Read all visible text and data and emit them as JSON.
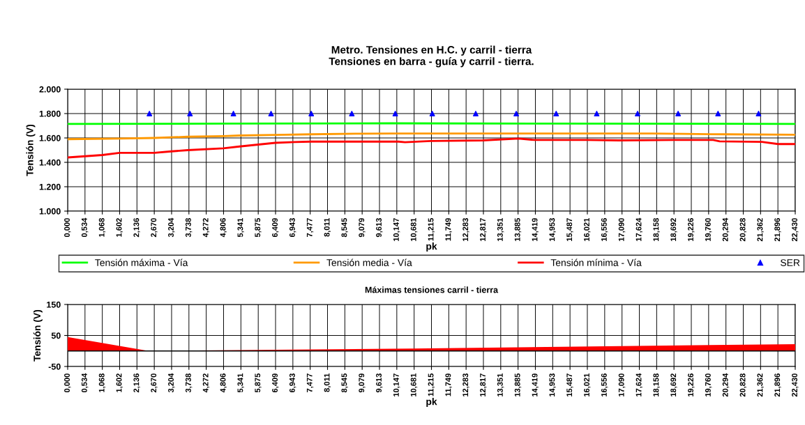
{
  "chart_data": [
    {
      "type": "line",
      "title": "Metro. Tensiones en H.C. y carril - tierra",
      "subtitle": "Tensiones en barra - guía y carril - tierra.",
      "xlabel": "pk",
      "ylabel": "Tensión (V)",
      "xlim": [
        0,
        22.43
      ],
      "ylim": [
        1000,
        2000
      ],
      "xticks": [
        {
          "value": 0,
          "label": "0,000"
        },
        {
          "value": 0.534,
          "label": "0,534"
        },
        {
          "value": 1.068,
          "label": "1,068"
        },
        {
          "value": 1.602,
          "label": "1,602"
        },
        {
          "value": 2.136,
          "label": "2,136"
        },
        {
          "value": 2.67,
          "label": "2,670"
        },
        {
          "value": 3.204,
          "label": "3,204"
        },
        {
          "value": 3.738,
          "label": "3,738"
        },
        {
          "value": 4.272,
          "label": "4,272"
        },
        {
          "value": 4.806,
          "label": "4,806"
        },
        {
          "value": 5.341,
          "label": "5,341"
        },
        {
          "value": 5.875,
          "label": "5,875"
        },
        {
          "value": 6.409,
          "label": "6,409"
        },
        {
          "value": 6.943,
          "label": "6,943"
        },
        {
          "value": 7.477,
          "label": "7,477"
        },
        {
          "value": 8.011,
          "label": "8,011"
        },
        {
          "value": 8.545,
          "label": "8,545"
        },
        {
          "value": 9.079,
          "label": "9,079"
        },
        {
          "value": 9.613,
          "label": "9,613"
        },
        {
          "value": 10.147,
          "label": "10,147"
        },
        {
          "value": 10.681,
          "label": "10,681"
        },
        {
          "value": 11.215,
          "label": "11,215"
        },
        {
          "value": 11.749,
          "label": "11,749"
        },
        {
          "value": 12.283,
          "label": "12,283"
        },
        {
          "value": 12.817,
          "label": "12,817"
        },
        {
          "value": 13.351,
          "label": "13,351"
        },
        {
          "value": 13.885,
          "label": "13,885"
        },
        {
          "value": 14.419,
          "label": "14,419"
        },
        {
          "value": 14.953,
          "label": "14,953"
        },
        {
          "value": 15.487,
          "label": "15,487"
        },
        {
          "value": 16.021,
          "label": "16,021"
        },
        {
          "value": 16.556,
          "label": "16,556"
        },
        {
          "value": 17.09,
          "label": "17,090"
        },
        {
          "value": 17.624,
          "label": "17,624"
        },
        {
          "value": 18.158,
          "label": "18,158"
        },
        {
          "value": 18.692,
          "label": "18,692"
        },
        {
          "value": 19.226,
          "label": "19,226"
        },
        {
          "value": 19.76,
          "label": "19,760"
        },
        {
          "value": 20.294,
          "label": "20,294"
        },
        {
          "value": 20.828,
          "label": "20,828"
        },
        {
          "value": 21.362,
          "label": "21,362"
        },
        {
          "value": 21.896,
          "label": "21,896"
        },
        {
          "value": 22.43,
          "label": "22,430"
        }
      ],
      "yticks": [
        {
          "value": 1000,
          "label": "1.000"
        },
        {
          "value": 1200,
          "label": "1.200"
        },
        {
          "value": 1400,
          "label": "1.400"
        },
        {
          "value": 1600,
          "label": "1.600"
        },
        {
          "value": 1800,
          "label": "1.800"
        },
        {
          "value": 2000,
          "label": "2.000"
        }
      ],
      "grid": true,
      "legend": "bottom",
      "series": [
        {
          "name": "Tensión máxima - Vía",
          "color": "#00ff00",
          "x": [
            0,
            5,
            10,
            15,
            20,
            22.43
          ],
          "values": [
            1715,
            1718,
            1720,
            1718,
            1717,
            1715
          ]
        },
        {
          "name": "Tensión media - Vía",
          "color": "#ff9900",
          "x": [
            0,
            1.6,
            2.67,
            3.7,
            4.8,
            5.3,
            6.4,
            7.5,
            9,
            10,
            14,
            18,
            19,
            20.3,
            22.43
          ],
          "values": [
            1590,
            1595,
            1600,
            1610,
            1615,
            1620,
            1625,
            1630,
            1635,
            1637,
            1637,
            1637,
            1633,
            1630,
            1627
          ]
        },
        {
          "name": "Tensión mínima - Vía",
          "color": "#ff0000",
          "x": [
            0,
            1.07,
            1.6,
            2.67,
            3.2,
            3.7,
            4.8,
            5.3,
            6.4,
            7,
            7.5,
            10.2,
            10.4,
            11.2,
            12.8,
            13.9,
            14.4,
            16,
            17,
            18.7,
            19.9,
            20.1,
            21.4,
            21.9,
            22.43
          ],
          "values": [
            1440,
            1460,
            1478,
            1478,
            1490,
            1500,
            1515,
            1530,
            1560,
            1567,
            1570,
            1570,
            1565,
            1575,
            1580,
            1595,
            1583,
            1583,
            1580,
            1583,
            1583,
            1572,
            1568,
            1550,
            1550
          ]
        },
        {
          "name": "SER",
          "type": "scatter",
          "marker": "triangle",
          "color": "#0000ff",
          "x": [
            2.52,
            3.77,
            5.11,
            6.27,
            7.51,
            8.76,
            10.1,
            11.24,
            12.58,
            13.83,
            15.06,
            16.31,
            17.57,
            18.82,
            20.05,
            21.3
          ],
          "values": [
            1800,
            1800,
            1800,
            1800,
            1800,
            1800,
            1800,
            1800,
            1800,
            1800,
            1800,
            1800,
            1800,
            1800,
            1800,
            1800
          ]
        }
      ]
    },
    {
      "type": "area",
      "title": "Máximas tensiones carril - tierra",
      "xlabel": "pk",
      "ylabel": "Tensión (V)",
      "xlim": [
        0,
        22.43
      ],
      "ylim": [
        -50,
        150
      ],
      "yticks": [
        -50,
        50,
        150
      ],
      "grid": true,
      "xticks": [
        {
          "value": 0,
          "label": "0,000"
        },
        {
          "value": 0.534,
          "label": "0,534"
        },
        {
          "value": 1.068,
          "label": "1,068"
        },
        {
          "value": 1.602,
          "label": "1,602"
        },
        {
          "value": 2.136,
          "label": "2,136"
        },
        {
          "value": 2.67,
          "label": "2,670"
        },
        {
          "value": 3.204,
          "label": "3,204"
        },
        {
          "value": 3.738,
          "label": "3,738"
        },
        {
          "value": 4.272,
          "label": "4,272"
        },
        {
          "value": 4.806,
          "label": "4,806"
        },
        {
          "value": 5.341,
          "label": "5,341"
        },
        {
          "value": 5.875,
          "label": "5,875"
        },
        {
          "value": 6.409,
          "label": "6,409"
        },
        {
          "value": 6.943,
          "label": "6,943"
        },
        {
          "value": 7.477,
          "label": "7,477"
        },
        {
          "value": 8.011,
          "label": "8,011"
        },
        {
          "value": 8.545,
          "label": "8,545"
        },
        {
          "value": 9.079,
          "label": "9,079"
        },
        {
          "value": 9.613,
          "label": "9,613"
        },
        {
          "value": 10.147,
          "label": "10,147"
        },
        {
          "value": 10.681,
          "label": "10,681"
        },
        {
          "value": 11.215,
          "label": "11,215"
        },
        {
          "value": 11.749,
          "label": "11,749"
        },
        {
          "value": 12.283,
          "label": "12,283"
        },
        {
          "value": 12.817,
          "label": "12,817"
        },
        {
          "value": 13.351,
          "label": "13,351"
        },
        {
          "value": 13.885,
          "label": "13,885"
        },
        {
          "value": 14.419,
          "label": "14,419"
        },
        {
          "value": 14.953,
          "label": "14,953"
        },
        {
          "value": 15.487,
          "label": "15,487"
        },
        {
          "value": 16.021,
          "label": "16,021"
        },
        {
          "value": 16.556,
          "label": "16,556"
        },
        {
          "value": 17.09,
          "label": "17,090"
        },
        {
          "value": 17.624,
          "label": "17,624"
        },
        {
          "value": 18.158,
          "label": "18,158"
        },
        {
          "value": 18.692,
          "label": "18,692"
        },
        {
          "value": 19.226,
          "label": "19,226"
        },
        {
          "value": 19.76,
          "label": "19,760"
        },
        {
          "value": 20.294,
          "label": "20,294"
        },
        {
          "value": 20.828,
          "label": "20,828"
        },
        {
          "value": 21.362,
          "label": "21,362"
        },
        {
          "value": 21.896,
          "label": "21,896"
        },
        {
          "value": 22.43,
          "label": "22,430"
        }
      ],
      "series": [
        {
          "color": "#ff0000",
          "x": [
            0,
            2.5,
            10.68,
            22.43
          ],
          "values": [
            45,
            0,
            8,
            22
          ]
        }
      ]
    }
  ]
}
